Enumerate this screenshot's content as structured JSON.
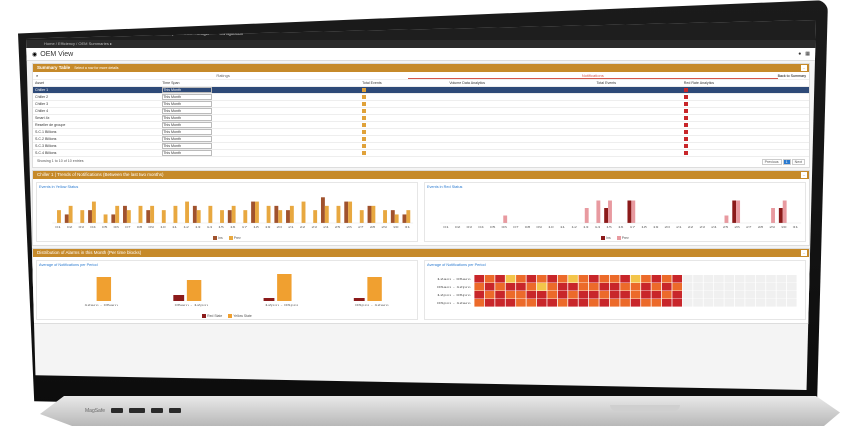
{
  "app": {
    "logo_letter": "A",
    "logo_text": "Xompass",
    "nav": [
      {
        "label": "Summaries",
        "icon": "home-icon"
      },
      {
        "label": "Explore Data",
        "icon": "explore-icon"
      },
      {
        "label": "Scalability",
        "icon": "scale-icon"
      },
      {
        "label": "Data Manager",
        "icon": "data-icon"
      },
      {
        "label": "Configuration",
        "icon": "gear-icon"
      }
    ],
    "breadcrumb": "Home / Efficiency / OEM Summaries ▸",
    "page_title": "OEM View",
    "toolbar": {
      "user_icon": "user-icon",
      "menu_icon": "menu-icon"
    }
  },
  "summary": {
    "title": "Summary Table",
    "subtitle": "Select a row for more details",
    "search_placeholder": "",
    "tabs": [
      {
        "label": "Ratings",
        "active": false
      },
      {
        "label": "Notifications",
        "active": true
      }
    ],
    "back_label": "Back to Summary",
    "columns": [
      "Asset",
      "Time Span",
      "Total Events",
      "Volume Data Analytics",
      "Total Events",
      "Red Rate Analytics"
    ],
    "rows": [
      {
        "asset": "Chiller 1",
        "span": "This Month",
        "selected": true
      },
      {
        "asset": "Chiller 2",
        "span": "This Month",
        "selected": false
      },
      {
        "asset": "Chiller 3",
        "span": "This Month",
        "selected": false
      },
      {
        "asset": "Chiller 4",
        "span": "This Month",
        "selected": false
      },
      {
        "asset": "Smart 4x",
        "span": "This Month",
        "selected": false
      },
      {
        "asset": "Reseller de groupe",
        "span": "This Month",
        "selected": false
      },
      {
        "asset": "S.C.1 Billions",
        "span": "This Month",
        "selected": false
      },
      {
        "asset": "S.C.2 Billions",
        "span": "This Month",
        "selected": false
      },
      {
        "asset": "S.C.3 Billions",
        "span": "This Month",
        "selected": false
      },
      {
        "asset": "S.C.4 Billions",
        "span": "This Month",
        "selected": false
      }
    ],
    "footer": "Showing 1 to 10 of 10 entries",
    "pager": {
      "prev": "Previous",
      "current": "1",
      "next": "Next"
    }
  },
  "trends": {
    "title": "Chiller 1 | Trends of Notifications (Between the last two months)",
    "left_title": "Events in Yellow Status",
    "right_title": "Events in Red Status",
    "legend_left": [
      {
        "name": "Ins",
        "color": "#a0522d"
      },
      {
        "name": "Prev",
        "color": "#e8a840"
      }
    ],
    "legend_right": [
      {
        "name": "Ins",
        "color": "#8b1a1a"
      },
      {
        "name": "Prev",
        "color": "#e89aa0"
      }
    ]
  },
  "distribution": {
    "title": "Distribution of Alarms in this Month (Per time blocks)",
    "left_title": "Average of Notifications per Period",
    "right_title": "Average of Notifications per Period",
    "periods": [
      "12am - 06am",
      "06am - 12pm",
      "12pm - 06pm",
      "06pm - 12am"
    ],
    "legend": [
      {
        "name": "Red State",
        "color": "#8b1a1a"
      },
      {
        "name": "Yellow State",
        "color": "#f0a030"
      }
    ],
    "heat_rows": [
      "12am - 06am",
      "06am - 12pm",
      "12pm - 06pm",
      "06pm - 12am"
    ]
  },
  "chart_data": [
    {
      "type": "bar",
      "title": "Events in Yellow Status",
      "categories": [
        "01",
        "02",
        "03",
        "04",
        "05",
        "06",
        "07",
        "08",
        "09",
        "10",
        "11",
        "12",
        "13",
        "14",
        "15",
        "16",
        "17",
        "18",
        "19",
        "20",
        "21",
        "22",
        "23",
        "24",
        "25",
        "26",
        "27",
        "28",
        "29",
        "30",
        "31"
      ],
      "series": [
        {
          "name": "Ins",
          "values": [
            0,
            2,
            0,
            3,
            0,
            2,
            4,
            0,
            3,
            0,
            0,
            0,
            4,
            0,
            0,
            3,
            0,
            5,
            0,
            4,
            3,
            0,
            0,
            6,
            0,
            5,
            0,
            4,
            0,
            3,
            2
          ]
        },
        {
          "name": "Prev",
          "values": [
            3,
            4,
            3,
            5,
            2,
            4,
            3,
            4,
            4,
            3,
            4,
            5,
            3,
            4,
            3,
            4,
            3,
            5,
            4,
            3,
            4,
            5,
            3,
            4,
            4,
            5,
            3,
            4,
            3,
            2,
            3
          ]
        }
      ],
      "ylim": [
        0,
        7
      ]
    },
    {
      "type": "bar",
      "title": "Events in Red Status",
      "categories": [
        "01",
        "02",
        "03",
        "04",
        "05",
        "06",
        "07",
        "08",
        "09",
        "10",
        "11",
        "12",
        "13",
        "14",
        "15",
        "16",
        "17",
        "18",
        "19",
        "20",
        "21",
        "22",
        "23",
        "24",
        "25",
        "26",
        "27",
        "28",
        "29",
        "30",
        "31"
      ],
      "series": [
        {
          "name": "Ins",
          "values": [
            0,
            0,
            0,
            0,
            0,
            0,
            0,
            0,
            0,
            0,
            0,
            0,
            0,
            0,
            2,
            0,
            3,
            0,
            0,
            0,
            0,
            0,
            0,
            0,
            0,
            3,
            0,
            0,
            0,
            2,
            0
          ]
        },
        {
          "name": "Prev",
          "values": [
            0,
            0,
            0,
            0,
            0,
            1,
            0,
            0,
            0,
            0,
            0,
            0,
            2,
            3,
            3,
            0,
            3,
            0,
            0,
            0,
            0,
            0,
            0,
            0,
            1,
            3,
            0,
            0,
            2,
            3,
            0
          ]
        }
      ],
      "ylim": [
        0,
        4
      ]
    },
    {
      "type": "bar",
      "title": "Average of Notifications per Period",
      "categories": [
        "12am - 06am",
        "06am - 12pm",
        "12pm - 06pm",
        "06pm - 12am"
      ],
      "series": [
        {
          "name": "Red State",
          "values": [
            0,
            2,
            1,
            1
          ]
        },
        {
          "name": "Yellow State",
          "values": [
            8,
            7,
            9,
            8
          ]
        }
      ],
      "ylim": [
        0,
        10
      ]
    },
    {
      "type": "heatmap",
      "title": "Average of Notifications per Period",
      "rows": [
        "12am - 06am",
        "06am - 12pm",
        "12pm - 06pm",
        "06pm - 12am"
      ],
      "columns": 31,
      "values": [
        [
          3,
          2,
          3,
          1,
          2,
          3,
          2,
          3,
          2,
          1,
          2,
          3,
          2,
          2,
          3,
          1,
          2,
          3,
          2,
          3,
          0,
          0,
          0,
          0,
          0,
          0,
          0,
          0,
          0,
          0,
          0
        ],
        [
          2,
          3,
          2,
          3,
          3,
          2,
          1,
          2,
          3,
          3,
          2,
          2,
          3,
          3,
          2,
          2,
          3,
          2,
          3,
          2,
          0,
          0,
          0,
          0,
          0,
          0,
          0,
          0,
          0,
          0,
          0
        ],
        [
          3,
          2,
          3,
          2,
          2,
          3,
          3,
          2,
          3,
          2,
          3,
          3,
          2,
          3,
          3,
          2,
          3,
          3,
          2,
          3,
          0,
          0,
          0,
          0,
          0,
          0,
          0,
          0,
          0,
          0,
          0
        ],
        [
          2,
          3,
          3,
          3,
          2,
          2,
          3,
          3,
          2,
          3,
          3,
          2,
          3,
          2,
          2,
          3,
          2,
          2,
          3,
          3,
          0,
          0,
          0,
          0,
          0,
          0,
          0,
          0,
          0,
          0,
          0
        ]
      ]
    }
  ],
  "laptop": {
    "port_label": "MagSafe"
  }
}
